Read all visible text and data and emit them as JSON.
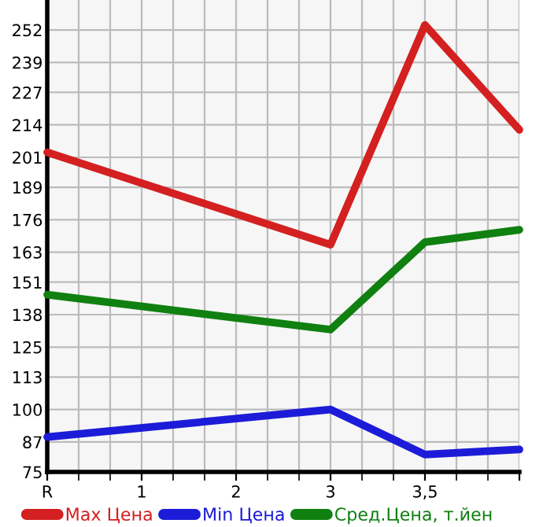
{
  "chart_data": {
    "type": "line",
    "categories": [
      "R",
      "1",
      "2",
      "3",
      "3,5",
      null
    ],
    "ylim": [
      75,
      264
    ],
    "yticks": [
      75,
      87,
      100,
      113,
      125,
      138,
      151,
      163,
      176,
      189,
      201,
      214,
      227,
      239,
      252
    ],
    "grid": true,
    "legend": "bottom",
    "marker": "none",
    "line_style": "solid",
    "series": [
      {
        "name": "Max Цена",
        "color": "#d42020",
        "values": [
          203,
          null,
          null,
          166,
          254,
          212
        ]
      },
      {
        "name": "Min Цена",
        "color": "#1c1cd8",
        "values": [
          89,
          null,
          null,
          100,
          82,
          84
        ]
      },
      {
        "name": "Сред.Цена, т.йен",
        "color": "#108010",
        "values": [
          146,
          null,
          null,
          132,
          167,
          172
        ]
      }
    ]
  }
}
